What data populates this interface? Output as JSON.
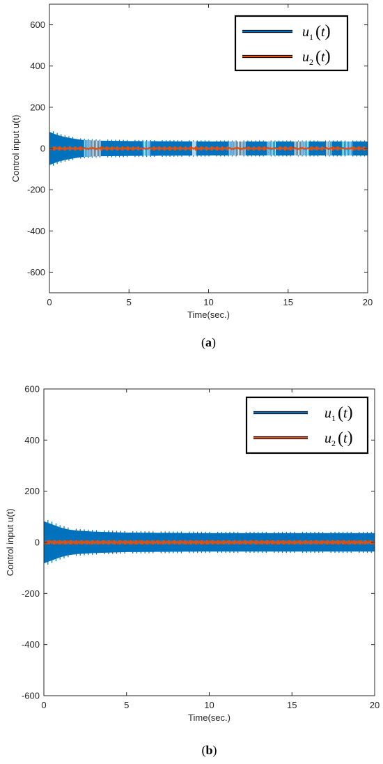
{
  "chart_data": [
    {
      "type": "line",
      "panel_label": "(a)",
      "xlabel": "Time(sec.)",
      "ylabel": "Control input u(t)",
      "xlim": [
        0,
        20
      ],
      "ylim": [
        -700,
        700
      ],
      "xticks": [
        0,
        5,
        10,
        15,
        20
      ],
      "yticks": [
        -600,
        -400,
        -200,
        0,
        200,
        400,
        600
      ],
      "grid": false,
      "legend_position": "top-right",
      "series": [
        {
          "name": "u1(t)",
          "legend_base": "u",
          "legend_sub": "1",
          "legend_arg": "t",
          "color": "#0072BD",
          "signal": "high-frequency oscillation",
          "envelope": {
            "t": [
              0,
              0.5,
              1,
              1.5,
              2,
              3,
              5,
              10,
              15,
              20
            ],
            "amplitude": [
              80,
              65,
              55,
              48,
              42,
              38,
              36,
              34,
              34,
              34
            ]
          },
          "sparse_intervals": [
            [
              2.2,
              3.2
            ],
            [
              5.9,
              6.3
            ],
            [
              9.0,
              9.2
            ],
            [
              11.3,
              12.3
            ],
            [
              13.7,
              14.2
            ],
            [
              15.4,
              16.3
            ],
            [
              17.4,
              17.7
            ],
            [
              18.4,
              19.0
            ]
          ]
        },
        {
          "name": "u2(t)",
          "legend_base": "u",
          "legend_sub": "2",
          "legend_arg": "t",
          "color": "#D95319",
          "signal": "near zero",
          "envelope": {
            "t": [
              0,
              20
            ],
            "amplitude": [
              3,
              3
            ]
          }
        }
      ]
    },
    {
      "type": "line",
      "panel_label": "(b)",
      "xlabel": "Time(sec.)",
      "ylabel": "Control input u(t)",
      "xlim": [
        0,
        20
      ],
      "ylim": [
        -600,
        600
      ],
      "xticks": [
        0,
        5,
        10,
        15,
        20
      ],
      "yticks": [
        -600,
        -400,
        -200,
        0,
        200,
        400,
        600
      ],
      "grid": false,
      "legend_position": "top-right",
      "series": [
        {
          "name": "u1(t)",
          "legend_base": "u",
          "legend_sub": "1",
          "legend_arg": "t",
          "color": "#0072BD",
          "signal": "high-frequency oscillation",
          "envelope": {
            "t": [
              0,
              0.5,
              1,
              1.5,
              2,
              3,
              5,
              10,
              15,
              20
            ],
            "amplitude": [
              82,
              70,
              58,
              50,
              46,
              42,
              38,
              36,
              36,
              36
            ]
          },
          "sparse_intervals": []
        },
        {
          "name": "u2(t)",
          "legend_base": "u",
          "legend_sub": "2",
          "legend_arg": "t",
          "color": "#D95319",
          "signal": "near zero",
          "envelope": {
            "t": [
              0,
              20
            ],
            "amplitude": [
              4,
              4
            ]
          }
        }
      ]
    }
  ]
}
